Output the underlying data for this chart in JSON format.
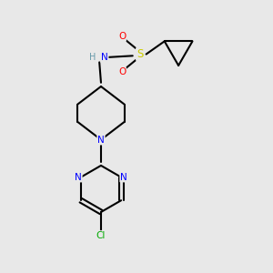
{
  "background_color": "#e8e8e8",
  "bond_color": "#000000",
  "bond_width": 1.5,
  "atom_colors": {
    "N": "#0000ff",
    "O": "#ff0000",
    "S": "#cccc00",
    "Cl": "#00aa00",
    "H": "#6699aa",
    "C": "#000000"
  },
  "font_size": 7.5
}
